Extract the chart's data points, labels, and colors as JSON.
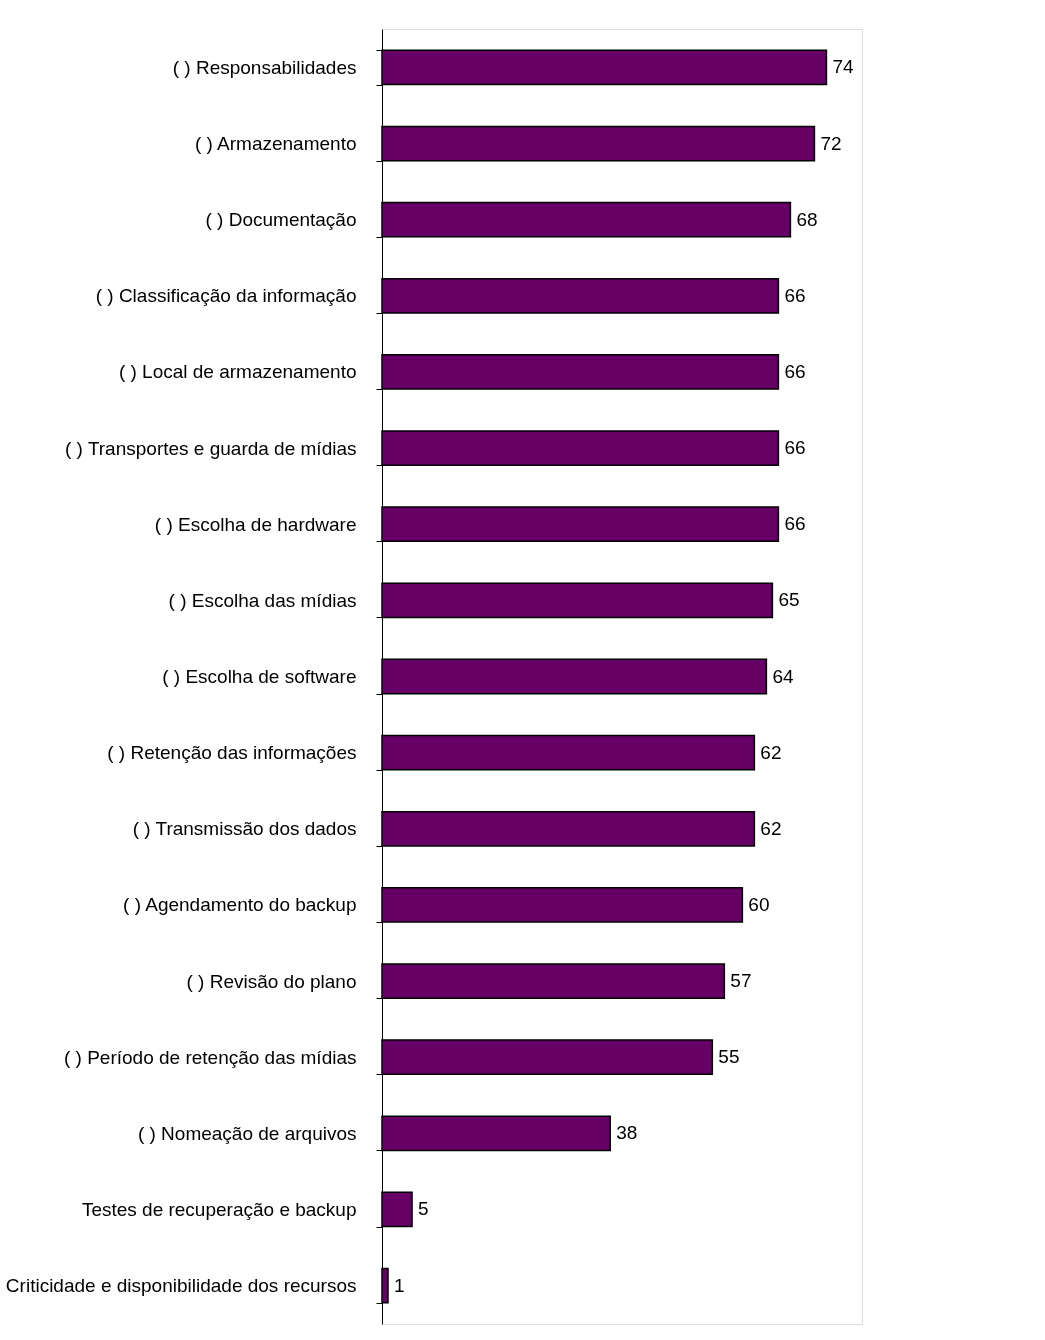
{
  "chart_data": {
    "type": "bar",
    "orientation": "horizontal",
    "data_labels": true,
    "color": "#660066",
    "categories": [
      "( )  Responsabilidades",
      "( )  Armazenamento",
      "( )  Documentação",
      "( )  Classificação da informação",
      "( )  Local de armazenamento",
      "( )  Transportes e guarda de mídias",
      "( )  Escolha de hardware",
      "( )  Escolha das mídias",
      "( )  Escolha de software ",
      "( )  Retenção das informações",
      "( ) Transmissão dos dados",
      "( )  Agendamento do backup ",
      "( )  Revisão do plano",
      "( )  Período de retenção das mídias",
      "( ) Nomeação de arquivos ",
      "Testes de recuperação e backup",
      "Criticidade e disponibilidade dos recursos"
    ],
    "values": [
      74,
      72,
      68,
      66,
      66,
      66,
      66,
      65,
      64,
      62,
      62,
      60,
      57,
      55,
      38,
      5,
      1
    ]
  }
}
